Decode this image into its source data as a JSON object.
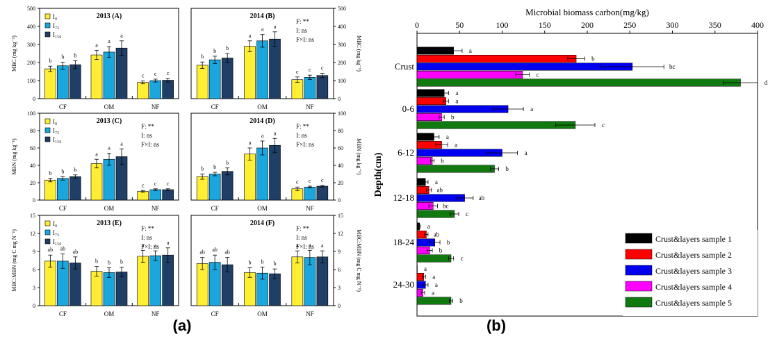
{
  "panel_labels": {
    "a": "(a)",
    "b": "(b)"
  },
  "colors": {
    "I0": "#ffee33",
    "I75": "#19a7dd",
    "I150": "#1f3f66",
    "s1": "#000000",
    "s2": "#ff0000",
    "s3": "#0000ee",
    "s4": "#ff00ff",
    "s5": "#107a10"
  },
  "chart_data": [
    {
      "type": "bar",
      "title": "2013 (A)",
      "ylabel": "MBC (mg kg⁻¹)",
      "ylim": [
        0,
        500
      ],
      "yticks": [
        0,
        100,
        200,
        300,
        400,
        500
      ],
      "categories": [
        "CF",
        "OM",
        "NF"
      ],
      "legend": [
        "I₀",
        "I₇₅",
        "I₁₅₀"
      ],
      "stats": [],
      "series": [
        {
          "name": "I₀",
          "values": [
            165,
            242,
            90
          ],
          "errors": [
            15,
            25,
            8
          ],
          "letters": [
            "b",
            "a",
            "c"
          ]
        },
        {
          "name": "I₇₅",
          "values": [
            182,
            258,
            100
          ],
          "errors": [
            20,
            30,
            8
          ],
          "letters": [
            "b",
            "a",
            "c"
          ]
        },
        {
          "name": "I₁₅₀",
          "values": [
            188,
            280,
            102
          ],
          "errors": [
            22,
            40,
            10
          ],
          "letters": [
            "b",
            "a",
            "c"
          ]
        }
      ]
    },
    {
      "type": "bar",
      "title": "2014 (B)",
      "ylabel": "MBC (mg kg⁻¹)",
      "ylim": [
        0,
        500
      ],
      "yticks": [
        0,
        100,
        200,
        300,
        400,
        500
      ],
      "categories": [
        "CF",
        "OM",
        "NF"
      ],
      "legend": [],
      "stats": [
        "F: **",
        "I: ns",
        "F×I: ns"
      ],
      "series": [
        {
          "name": "I₀",
          "values": [
            185,
            290,
            105
          ],
          "errors": [
            18,
            30,
            15
          ],
          "letters": [
            "b",
            "a",
            "c"
          ]
        },
        {
          "name": "I₇₅",
          "values": [
            215,
            320,
            118
          ],
          "errors": [
            20,
            35,
            12
          ],
          "letters": [
            "b",
            "a",
            "c"
          ]
        },
        {
          "name": "I₁₅₀",
          "values": [
            225,
            330,
            128
          ],
          "errors": [
            25,
            40,
            12
          ],
          "letters": [
            "b",
            "a",
            "c"
          ]
        }
      ]
    },
    {
      "type": "bar",
      "title": "2013 (C)",
      "ylabel": "MBN (mg kg⁻¹)",
      "ylim": [
        0,
        100
      ],
      "yticks": [
        0,
        20,
        40,
        60,
        80,
        100
      ],
      "categories": [
        "CF",
        "OM",
        "NF"
      ],
      "legend": [
        "I₀",
        "I₇₅",
        "I₁₅₀"
      ],
      "stats": [
        "F: **",
        "I: ns",
        "F×I: ns"
      ],
      "series": [
        {
          "name": "I₀",
          "values": [
            23,
            42,
            10
          ],
          "errors": [
            2,
            5,
            1
          ],
          "letters": [
            "b",
            "a",
            "c"
          ]
        },
        {
          "name": "I₇₅",
          "values": [
            25,
            47,
            12
          ],
          "errors": [
            2,
            7,
            1
          ],
          "letters": [
            "b",
            "a",
            "c"
          ]
        },
        {
          "name": "I₁₅₀",
          "values": [
            27,
            50,
            12
          ],
          "errors": [
            2,
            9,
            1
          ],
          "letters": [
            "b",
            "a",
            "c"
          ]
        }
      ]
    },
    {
      "type": "bar",
      "title": "2014 (D)",
      "ylabel": "MBN (mg kg⁻¹)",
      "ylim": [
        0,
        100
      ],
      "yticks": [
        0,
        20,
        40,
        60,
        80,
        100
      ],
      "categories": [
        "CF",
        "OM",
        "NF"
      ],
      "legend": [],
      "stats": [
        "F: **",
        "I: ns",
        "F×I: ns"
      ],
      "series": [
        {
          "name": "I₀",
          "values": [
            27,
            53,
            13
          ],
          "errors": [
            3,
            7,
            2
          ],
          "letters": [
            "b",
            "a",
            "c"
          ]
        },
        {
          "name": "I₇₅",
          "values": [
            30,
            60,
            15
          ],
          "errors": [
            2,
            8,
            1
          ],
          "letters": [
            "b",
            "a",
            "c"
          ]
        },
        {
          "name": "I₁₅₀",
          "values": [
            33,
            63,
            16
          ],
          "errors": [
            4,
            8,
            1
          ],
          "letters": [
            "b",
            "a",
            "c"
          ]
        }
      ]
    },
    {
      "type": "bar",
      "title": "2013 (E)",
      "ylabel": "MBC:MBN (mg C mg N⁻¹)",
      "ylim": [
        0,
        15
      ],
      "yticks": [
        0,
        3,
        6,
        9,
        12,
        15
      ],
      "categories": [
        "CF",
        "OM",
        "NF"
      ],
      "legend": [
        "I₀",
        "I₇₅",
        "I₁₅₀"
      ],
      "stats": [
        "F: **",
        "I: ns",
        "F×I: ns"
      ],
      "series": [
        {
          "name": "I₀",
          "values": [
            7.4,
            5.7,
            8.2
          ],
          "errors": [
            1.0,
            0.8,
            1.0
          ],
          "letters": [
            "ab",
            "b",
            "a"
          ]
        },
        {
          "name": "I₇₅",
          "values": [
            7.4,
            5.5,
            8.3
          ],
          "errors": [
            1.2,
            0.8,
            0.8
          ],
          "letters": [
            "ab",
            "b",
            "a"
          ]
        },
        {
          "name": "I₁₅₀",
          "values": [
            7.1,
            5.6,
            8.4
          ],
          "errors": [
            1.0,
            0.8,
            1.2
          ],
          "letters": [
            "ab",
            "b",
            "a"
          ]
        }
      ]
    },
    {
      "type": "bar",
      "title": "2014 (F)",
      "ylabel": "MBC:MBN (mg C mg N⁻¹)",
      "ylim": [
        0,
        15
      ],
      "yticks": [
        0,
        3,
        6,
        9,
        12,
        15
      ],
      "categories": [
        "CF",
        "OM",
        "NF"
      ],
      "legend": [],
      "stats": [
        "F: **",
        "I: ns",
        "F×I: ns"
      ],
      "series": [
        {
          "name": "I₀",
          "values": [
            7.0,
            5.5,
            8.1
          ],
          "errors": [
            1.0,
            0.8,
            1.0
          ],
          "letters": [
            "ab",
            "b",
            "a"
          ]
        },
        {
          "name": "I₇₅",
          "values": [
            7.2,
            5.4,
            8.0
          ],
          "errors": [
            1.2,
            1.0,
            1.2
          ],
          "letters": [
            "ab",
            "b",
            "a"
          ]
        },
        {
          "name": "I₁₅₀",
          "values": [
            6.8,
            5.3,
            8.1
          ],
          "errors": [
            1.2,
            0.8,
            1.0
          ],
          "letters": [
            "ab",
            "b",
            "a"
          ]
        }
      ]
    },
    {
      "type": "bar",
      "orientation": "horizontal",
      "title": "Microbial biomass carbon(mg/kg)",
      "ylabel": "Depth(cm)",
      "xlim": [
        0,
        400
      ],
      "xticks": [
        0,
        50,
        100,
        150,
        200,
        250,
        300,
        350,
        400
      ],
      "categories": [
        "Crust",
        "0-6",
        "6-12",
        "12-18",
        "18-24",
        "24-30"
      ],
      "series": [
        {
          "name": "Crust&layers sample 1",
          "values": [
            43,
            32,
            20,
            10,
            3,
            0
          ],
          "errors": [
            10,
            5,
            6,
            3,
            1,
            0
          ],
          "letters": [
            "a",
            "a",
            "a",
            "a",
            "a",
            "a"
          ]
        },
        {
          "name": "Crust&layers sample 2",
          "values": [
            187,
            34,
            29,
            14,
            11,
            8
          ],
          "errors": [
            10,
            3,
            7,
            3,
            2,
            2
          ],
          "letters": [
            "b",
            "a",
            "a",
            "ab",
            "ab",
            "a"
          ]
        },
        {
          "name": "Crust&layers sample 3",
          "values": [
            253,
            107,
            100,
            56,
            21,
            10
          ],
          "errors": [
            37,
            18,
            18,
            10,
            6,
            3
          ],
          "letters": [
            "bc",
            "a",
            "a",
            "ab",
            "b",
            "a"
          ]
        },
        {
          "name": "Crust&layers sample 4",
          "values": [
            124,
            29,
            18,
            19,
            15,
            7
          ],
          "errors": [
            8,
            3,
            2,
            5,
            3,
            2
          ],
          "letters": [
            "c",
            "b",
            "b",
            "bc",
            "b",
            "a"
          ]
        },
        {
          "name": "Crust&layers sample 5",
          "values": [
            380,
            186,
            91,
            44,
            40,
            40
          ],
          "errors": [
            20,
            23,
            5,
            5,
            3,
            2
          ],
          "letters": [
            "d",
            "c",
            "b",
            "c",
            "c",
            "b"
          ]
        }
      ]
    }
  ]
}
